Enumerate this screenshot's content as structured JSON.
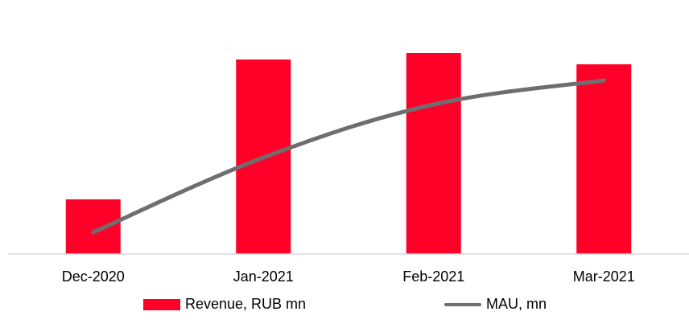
{
  "chart_data": {
    "type": "bar",
    "categories": [
      "Dec-2020",
      "Jan-2021",
      "Feb-2021",
      "Mar-2021"
    ],
    "series": [
      {
        "name": "Revenue, RUB mn",
        "type": "bar",
        "values": [
          68,
          242,
          250,
          236
        ],
        "color": "#ff0029"
      },
      {
        "name": "MAU, mn",
        "type": "line",
        "values": [
          27,
          120,
          186,
          216
        ],
        "color": "#6e6e6e"
      }
    ],
    "ylim": [
      0,
      280
    ],
    "grid": false,
    "legend": "bottom",
    "title": "",
    "xlabel": "",
    "ylabel": ""
  }
}
